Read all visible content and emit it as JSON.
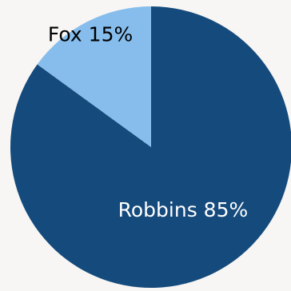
{
  "chart_data": {
    "type": "pie",
    "slices": [
      {
        "label": "Robbins",
        "value": 85,
        "display": "Robbins 85%",
        "color": "#154a7c",
        "label_color": "#ffffff"
      },
      {
        "label": "Fox",
        "value": 15,
        "display": "Fox 15%",
        "color": "#86bdec",
        "label_color": "#000000"
      }
    ],
    "start_angle_deg": 0,
    "direction": "clockwise",
    "background": "#f7f6f4"
  }
}
